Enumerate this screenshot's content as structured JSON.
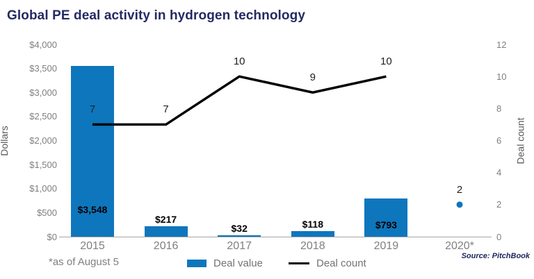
{
  "title": "Global PE deal activity in hydrogen technology",
  "footnote": "*as of August 5",
  "source": "Source: PitchBook",
  "colors": {
    "bar_blue": "#0e76bd",
    "line_black": "#000000",
    "title_navy": "#252a63",
    "axis_text_gray": "#7f7f7f",
    "axis_line_gray": "#a6a6a6"
  },
  "chart_data": {
    "type": "bar+line combo",
    "title": "Global PE deal activity in hydrogen technology",
    "categories": [
      "2015",
      "2016",
      "2017",
      "2018",
      "2019",
      "2020*"
    ],
    "series": [
      {
        "name": "Deal value",
        "type": "bar",
        "axis": "left",
        "values": [
          3548,
          217,
          32,
          118,
          793,
          null
        ],
        "labels": [
          "$3,548",
          "$217",
          "$32",
          "$118",
          "$793",
          null
        ],
        "label_placement": [
          "inside",
          "above",
          "above",
          "above",
          "inside",
          null
        ]
      },
      {
        "name": "Deal count",
        "type": "line",
        "axis": "right",
        "values": [
          7,
          7,
          10,
          9,
          10,
          2
        ],
        "point_styles": [
          "line",
          "line",
          "line",
          "line",
          "line",
          "dot"
        ],
        "note": "2020* count shown as isolated blue point, not connected to line"
      }
    ],
    "left_axis": {
      "title": "Dollars",
      "min": 0,
      "max": 4000,
      "ticks": [
        "$4,000",
        "$3,500",
        "$3,000",
        "$2,500",
        "$2,000",
        "$1,500",
        "$1,000",
        "$500",
        "$0"
      ]
    },
    "right_axis": {
      "title": "Deal count",
      "min": 0,
      "max": 12,
      "ticks": [
        "12",
        "10",
        "8",
        "6",
        "4",
        "2",
        "0"
      ]
    },
    "grid": false,
    "legend": {
      "position": "bottom",
      "entries": [
        {
          "label": "Deal value",
          "swatch": "bar"
        },
        {
          "label": "Deal count",
          "swatch": "line"
        }
      ]
    }
  }
}
